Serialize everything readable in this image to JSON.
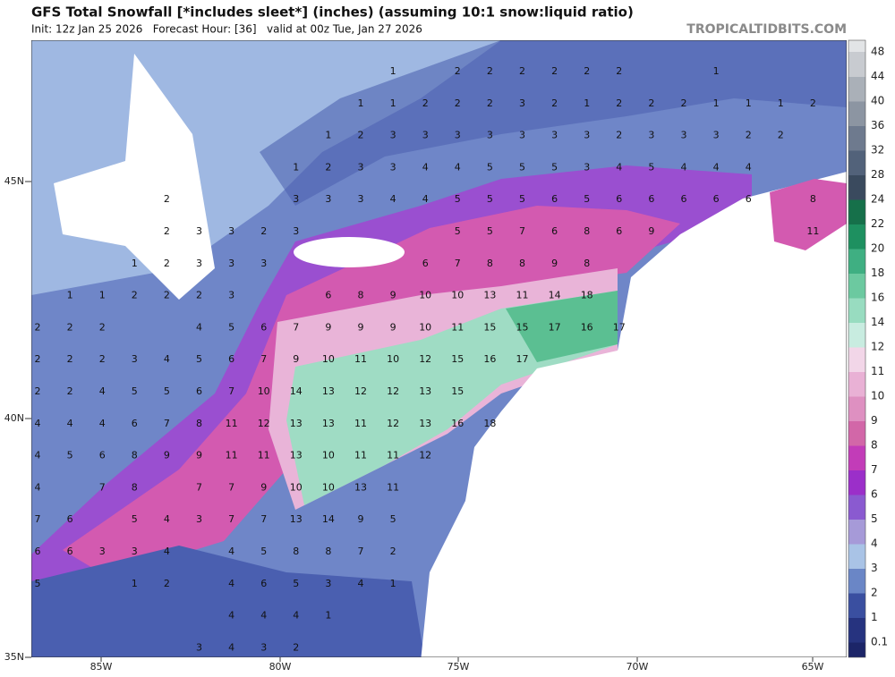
{
  "header": {
    "title": "GFS Total Snowfall [*includes sleet*] (inches) (assuming 10:1 snow:liquid ratio)",
    "subtitle": "Init: 12z Jan 25 2026   Forecast Hour: [36]   valid at 00z Tue, Jan 27 2026",
    "site": "TROPICALTIDBITS.COM"
  },
  "lat_labels": [
    "45N",
    "40N",
    "35N"
  ],
  "lon_labels": [
    "85W",
    "80W",
    "75W",
    "70W",
    "65W"
  ],
  "colorbar": {
    "labels": [
      0.1,
      1,
      2,
      3,
      4,
      5,
      6,
      7,
      8,
      9,
      10,
      11,
      12,
      14,
      16,
      18,
      20,
      22,
      24,
      28,
      32,
      36,
      40,
      44,
      48
    ]
  },
  "map_labels": [
    [
      null,
      null,
      null,
      null,
      null,
      null,
      null,
      null,
      null,
      null,
      null,
      1,
      null,
      2,
      2,
      2,
      2,
      2,
      2,
      null,
      null,
      1
    ],
    [
      null,
      null,
      null,
      null,
      null,
      null,
      null,
      null,
      null,
      null,
      1,
      1,
      2,
      2,
      2,
      3,
      2,
      1,
      2,
      2,
      2,
      1,
      1,
      1,
      2
    ],
    [
      null,
      null,
      null,
      null,
      null,
      null,
      null,
      null,
      null,
      1,
      2,
      3,
      3,
      3,
      3,
      3,
      3,
      3,
      2,
      3,
      3,
      3,
      2,
      2
    ],
    [
      null,
      null,
      null,
      null,
      null,
      null,
      null,
      null,
      1,
      2,
      3,
      3,
      4,
      4,
      5,
      5,
      5,
      3,
      4,
      5,
      4,
      4,
      4
    ],
    [
      null,
      null,
      null,
      null,
      2,
      null,
      null,
      null,
      3,
      3,
      3,
      4,
      4,
      5,
      5,
      5,
      6,
      5,
      6,
      6,
      6,
      6,
      6,
      null,
      8
    ],
    [
      null,
      null,
      null,
      null,
      2,
      3,
      3,
      2,
      3,
      null,
      null,
      null,
      null,
      5,
      5,
      7,
      6,
      8,
      6,
      9,
      null,
      null,
      null,
      null,
      11
    ],
    [
      null,
      null,
      null,
      1,
      2,
      3,
      3,
      3,
      null,
      null,
      null,
      null,
      6,
      7,
      8,
      8,
      9,
      8
    ],
    [
      null,
      1,
      1,
      2,
      2,
      2,
      3,
      null,
      null,
      6,
      8,
      9,
      10,
      10,
      13,
      11,
      14,
      18
    ],
    [
      2,
      2,
      2,
      null,
      null,
      4,
      5,
      6,
      7,
      9,
      9,
      9,
      10,
      11,
      15,
      15,
      17,
      16,
      17
    ],
    [
      2,
      2,
      2,
      3,
      4,
      5,
      6,
      7,
      9,
      10,
      11,
      10,
      12,
      15,
      16,
      17
    ],
    [
      2,
      2,
      4,
      5,
      5,
      6,
      7,
      10,
      14,
      13,
      12,
      12,
      13,
      15
    ],
    [
      4,
      4,
      4,
      6,
      7,
      8,
      11,
      12,
      13,
      13,
      11,
      12,
      13,
      16,
      18
    ],
    [
      4,
      5,
      6,
      8,
      9,
      9,
      11,
      11,
      13,
      10,
      11,
      11,
      12
    ],
    [
      4,
      null,
      7,
      8,
      null,
      7,
      7,
      9,
      10,
      10,
      13,
      11
    ],
    [
      7,
      6,
      null,
      5,
      4,
      3,
      7,
      7,
      13,
      14,
      9,
      5
    ],
    [
      6,
      6,
      3,
      3,
      4,
      null,
      4,
      5,
      8,
      8,
      7,
      2
    ],
    [
      5,
      null,
      null,
      1,
      2,
      null,
      4,
      6,
      5,
      3,
      4,
      1
    ],
    [
      null,
      null,
      null,
      null,
      null,
      null,
      4,
      4,
      4,
      1
    ],
    [
      null,
      null,
      null,
      null,
      null,
      3,
      4,
      3,
      2
    ]
  ]
}
